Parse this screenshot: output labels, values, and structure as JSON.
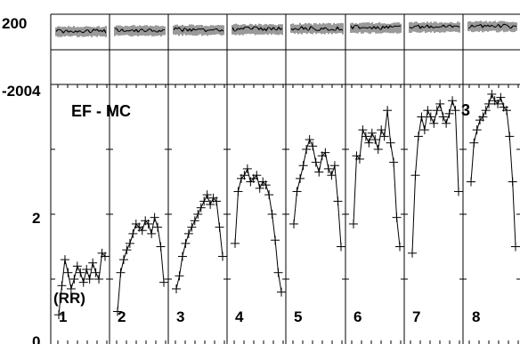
{
  "chart_data": {
    "type": "line",
    "annotation": "EF - MC",
    "ylabel_left": "(RR)",
    "top_panel": {
      "y_ticks": [
        "200",
        "-200"
      ],
      "ylim": [
        -200,
        200
      ]
    },
    "main_panel": {
      "y_ticks": [
        "0",
        "2",
        "4"
      ],
      "ylim": [
        0,
        4
      ]
    },
    "segments": [
      {
        "label": "1",
        "values": [
          0.45,
          0.9,
          1.3,
          1.1,
          0.85,
          1.0,
          1.2,
          1.1,
          0.95,
          1.15,
          1.0,
          1.25,
          1.1,
          1.0,
          1.4,
          1.35
        ]
      },
      {
        "label": "2",
        "values": [
          0.5,
          1.1,
          1.3,
          1.45,
          1.55,
          1.7,
          1.85,
          1.8,
          1.75,
          1.9,
          1.85,
          1.7,
          1.95,
          1.8,
          1.5,
          0.95
        ]
      },
      {
        "label": "3",
        "values": [
          0.85,
          1.05,
          1.35,
          1.55,
          1.7,
          1.8,
          1.9,
          2.0,
          2.1,
          2.2,
          2.3,
          2.15,
          2.25,
          2.2,
          1.8,
          1.35
        ]
      },
      {
        "label": "4",
        "values": [
          1.55,
          2.35,
          2.55,
          2.6,
          2.7,
          2.5,
          2.55,
          2.6,
          2.4,
          2.5,
          2.45,
          2.3,
          2.0,
          1.6,
          1.1,
          0.8
        ]
      },
      {
        "label": "5",
        "values": [
          1.85,
          2.35,
          2.55,
          2.75,
          3.0,
          3.15,
          3.05,
          2.8,
          2.65,
          2.9,
          2.95,
          2.7,
          2.6,
          2.75,
          2.2,
          1.5
        ]
      },
      {
        "label": "6",
        "values": [
          1.85,
          2.9,
          2.85,
          3.3,
          3.2,
          3.1,
          3.25,
          3.15,
          3.0,
          3.3,
          3.2,
          3.6,
          3.1,
          2.8,
          1.95,
          1.5
        ]
      },
      {
        "label": "7",
        "values": [
          1.4,
          2.6,
          3.2,
          3.5,
          3.3,
          3.6,
          3.5,
          3.4,
          3.6,
          3.7,
          3.5,
          3.4,
          3.55,
          3.75,
          3.6,
          2.35
        ]
      },
      {
        "label": "8",
        "values": [
          2.5,
          3.1,
          3.3,
          3.45,
          3.5,
          3.6,
          3.7,
          3.85,
          3.75,
          3.7,
          3.8,
          3.65,
          3.6,
          3.2,
          2.5,
          1.5
        ]
      }
    ],
    "overlay_label": "3",
    "grid": false,
    "legend": "none"
  }
}
